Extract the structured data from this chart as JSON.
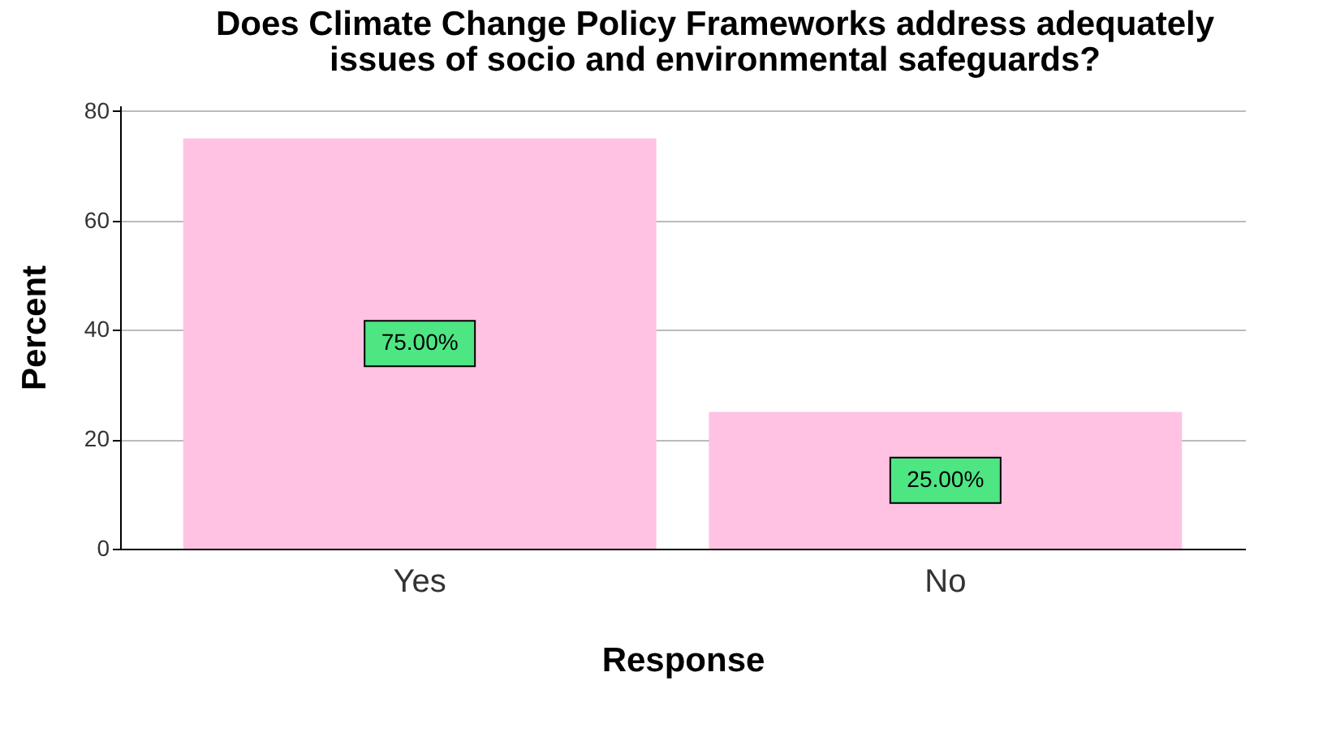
{
  "chart_data": {
    "type": "bar",
    "title": [
      "Does Climate Change Policy Frameworks address adequately",
      "issues of socio and environmental safeguards?"
    ],
    "xlabel": "Response",
    "ylabel": "Percent",
    "categories": [
      "Yes",
      "No"
    ],
    "values": [
      75,
      25
    ],
    "color": "#ffc2e3",
    "value_labels": [
      "75.00%",
      "25.00%"
    ],
    "ylim": [
      0,
      81
    ],
    "yticks": [
      0,
      20,
      40,
      60,
      80
    ],
    "grid": "y"
  }
}
